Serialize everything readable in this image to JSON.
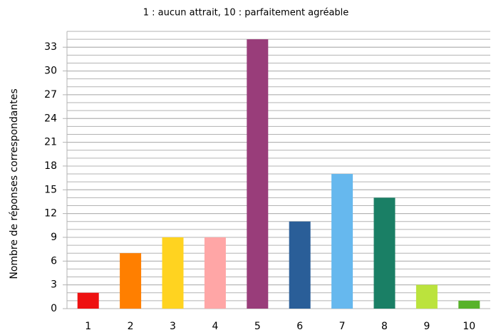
{
  "chart_data": {
    "type": "bar",
    "title": "1 : aucun attrait, 10 : parfaitement agréable",
    "ylabel": "Nombre de réponses correspondantes",
    "categories": [
      "1",
      "2",
      "3",
      "4",
      "5",
      "6",
      "7",
      "8",
      "9",
      "10"
    ],
    "values": [
      2,
      7,
      9,
      9,
      34,
      11,
      17,
      14,
      3,
      1
    ],
    "colors": [
      "#ee1111",
      "#ff7f00",
      "#ffd320",
      "#ffa6a6",
      "#993d7a",
      "#2a5e98",
      "#66b8ee",
      "#1a7f65",
      "#bbe33d",
      "#57b22a"
    ],
    "ylim": [
      0,
      35
    ],
    "yticks": [
      0,
      3,
      6,
      9,
      12,
      15,
      18,
      21,
      24,
      27,
      30,
      33
    ],
    "grid": true,
    "minor_grid_step": 1
  }
}
